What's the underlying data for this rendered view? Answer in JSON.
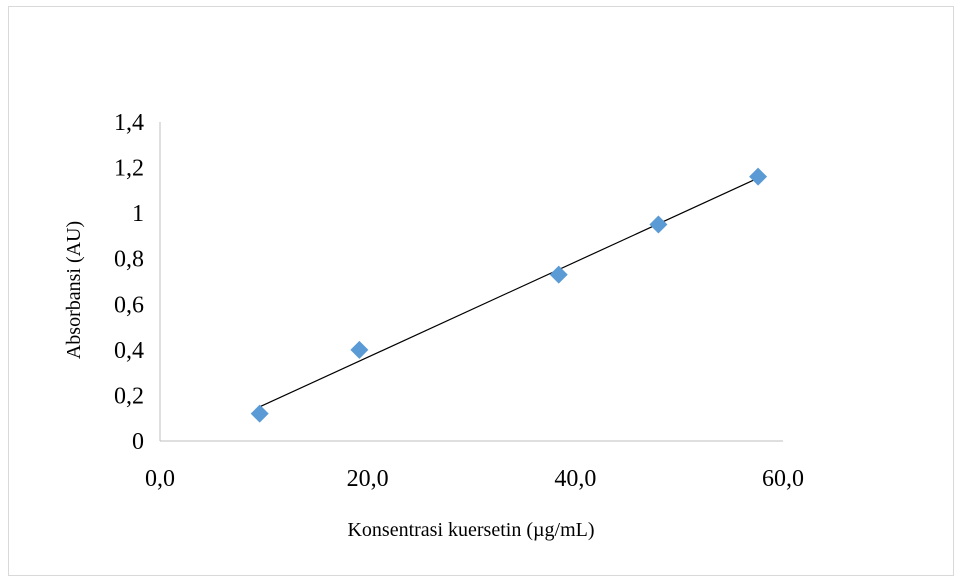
{
  "chart_data": {
    "type": "scatter",
    "title": "",
    "xlabel": "Konsentrasi kuersetin (µg/mL)",
    "ylabel": "Absorbansi (AU)",
    "xlim": [
      0,
      60
    ],
    "ylim": [
      0,
      1.4
    ],
    "x_ticks": [
      "0,0",
      "20,0",
      "40,0",
      "60,0"
    ],
    "y_ticks": [
      "0",
      "0,2",
      "0,4",
      "0,6",
      "0,8",
      "1",
      "1,2",
      "1,4"
    ],
    "grid": false,
    "legend": "none",
    "marker": "diamond",
    "marker_color": "#5b9bd5",
    "trendline": {
      "type": "linear",
      "color": "#000000"
    },
    "series": [
      {
        "x": [
          9.6,
          19.2,
          38.4,
          48.0,
          57.6
        ],
        "y": [
          0.12,
          0.4,
          0.73,
          0.95,
          1.16
        ]
      }
    ]
  }
}
